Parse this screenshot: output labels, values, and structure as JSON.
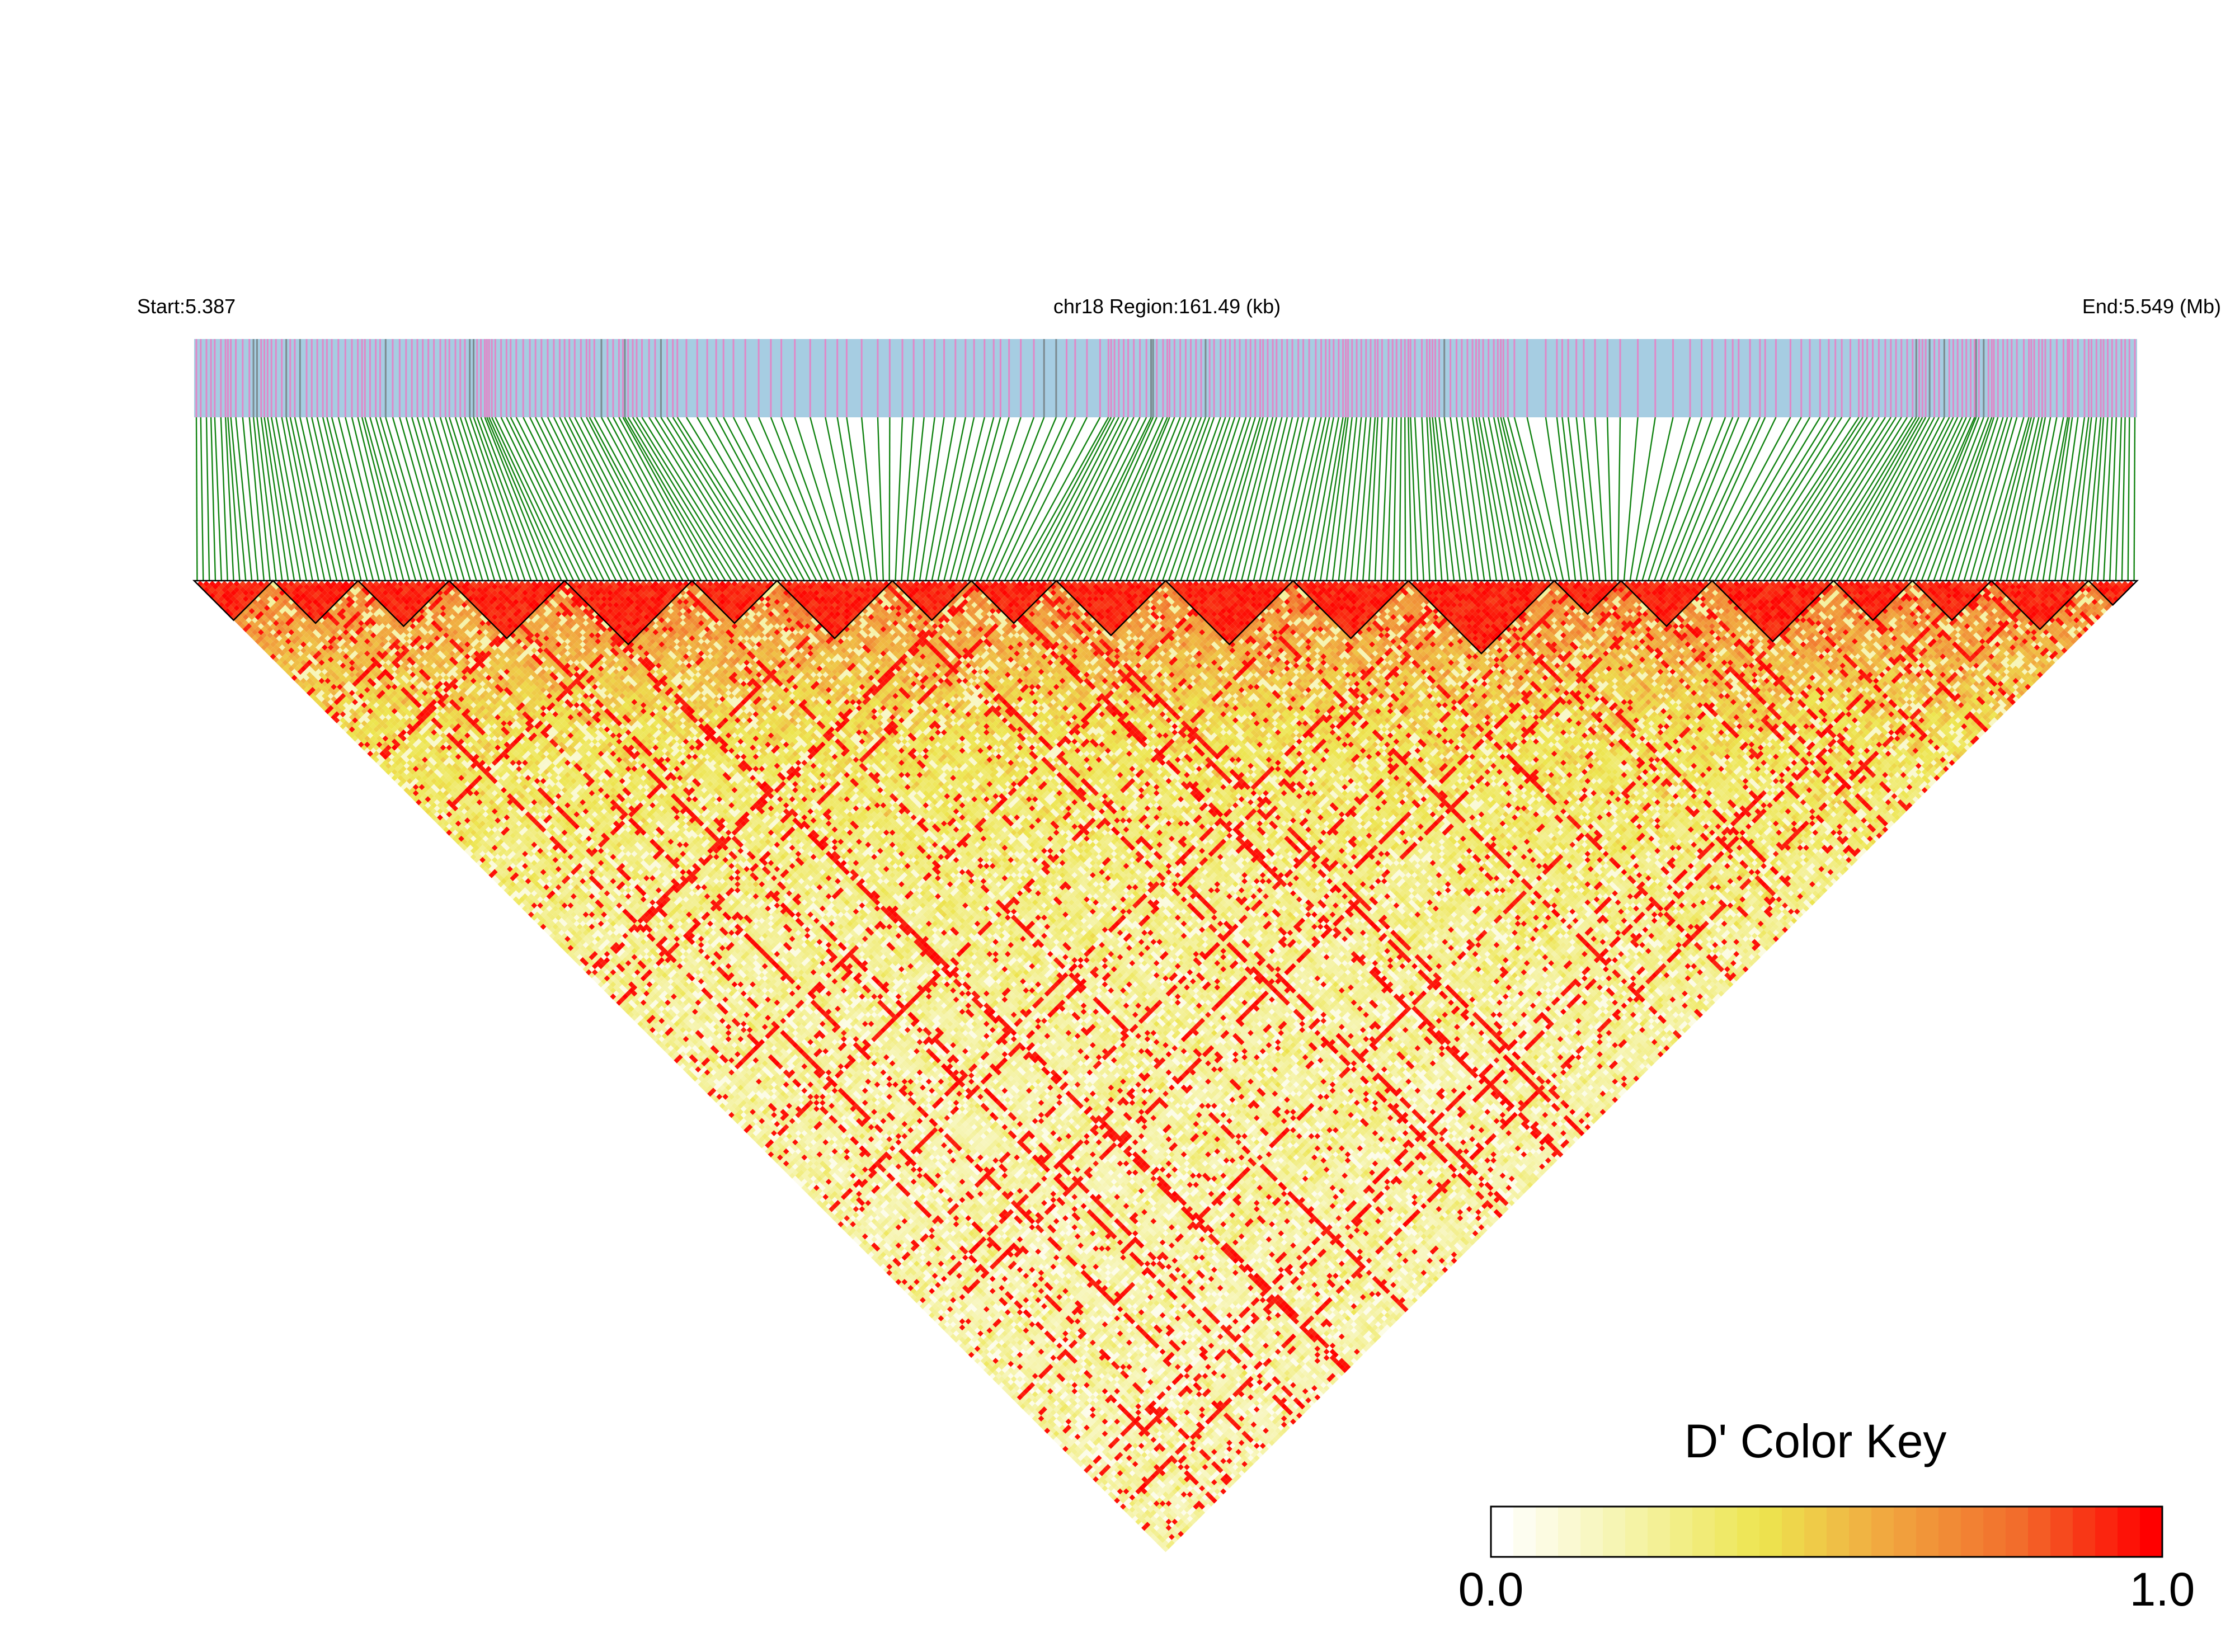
{
  "header": {
    "start_label": "Start:5.387",
    "region_label": "chr18 Region:161.49 (kb)",
    "end_label": "End:5.549 (Mb)"
  },
  "chart_data": {
    "type": "heatmap",
    "subtype": "linkage-disequilibrium-triangle",
    "chromosome": "chr18",
    "region_start_mb": 5.387,
    "region_end_mb": 5.549,
    "region_length_kb": 161.49,
    "metric": "D'",
    "color_key": {
      "title": "D' Color Key",
      "min_label": "0.0",
      "max_label": "1.0",
      "min": 0.0,
      "max": 1.0,
      "stops": [
        "#ffffff",
        "#f5f3a8",
        "#ede54f",
        "#f1a53f",
        "#f26b2b",
        "#ff0000"
      ]
    },
    "colors": {
      "track_background": "#a6cde2",
      "track_marker": "#e088c8",
      "track_marker_alt": "#7b8a8f",
      "connector": "#118311",
      "block_outline": "#000000"
    },
    "snp_count_estimate": 320,
    "blocks_approx_fraction": [
      [
        0.0,
        0.04
      ],
      [
        0.04,
        0.085
      ],
      [
        0.085,
        0.13
      ],
      [
        0.13,
        0.19
      ],
      [
        0.19,
        0.255
      ],
      [
        0.255,
        0.3
      ],
      [
        0.3,
        0.36
      ],
      [
        0.36,
        0.4
      ],
      [
        0.4,
        0.445
      ],
      [
        0.445,
        0.5
      ],
      [
        0.5,
        0.565
      ],
      [
        0.565,
        0.625
      ],
      [
        0.625,
        0.7
      ],
      [
        0.7,
        0.735
      ],
      [
        0.735,
        0.78
      ],
      [
        0.78,
        0.845
      ],
      [
        0.845,
        0.885
      ],
      [
        0.885,
        0.925
      ],
      [
        0.925,
        0.975
      ],
      [
        0.975,
        1.0
      ]
    ]
  }
}
